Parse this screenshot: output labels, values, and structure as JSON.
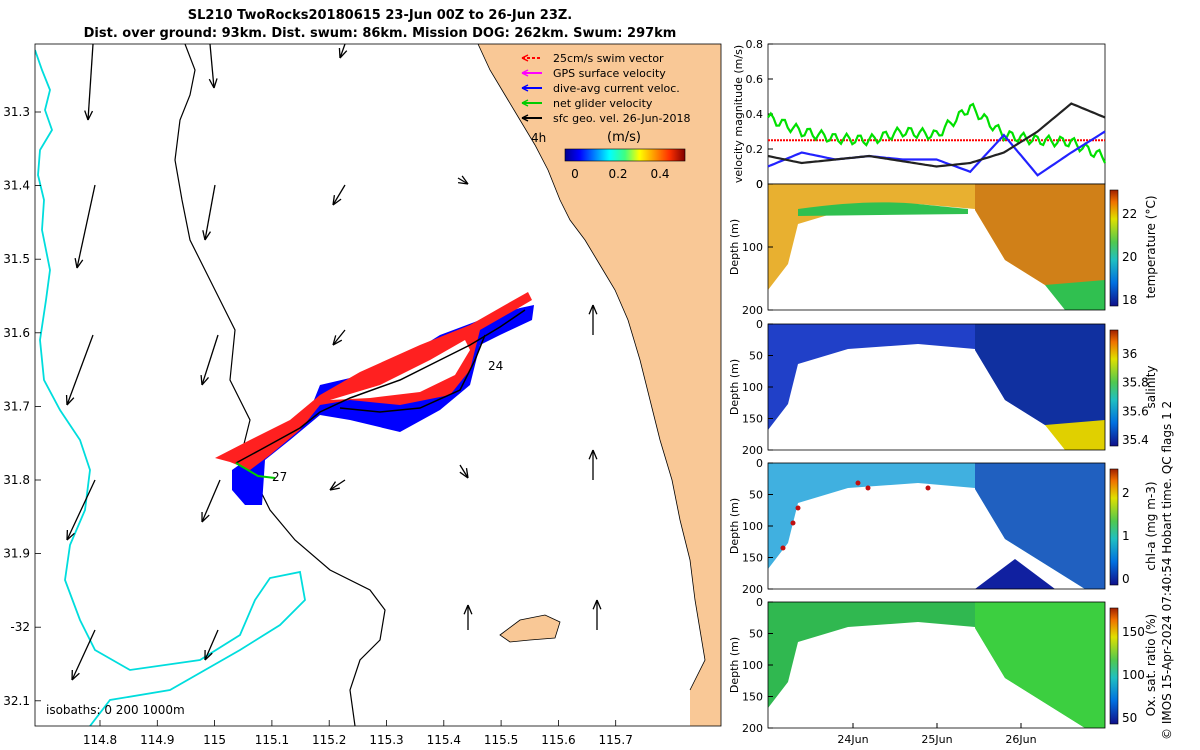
{
  "title": {
    "line1": "SL210 TwoRocks20180615 23-Jun 00Z to 26-Jun 23Z.",
    "line2": "Dist. over ground: 93km. Dist. swum: 86km. Mission DOG: 262km. Swum: 297km"
  },
  "credit": "© IMOS 15-Apr-2024 07:40:54 Hobart time. QC flags 1  2",
  "map": {
    "legend": [
      {
        "label": "25cm/s swim vector",
        "color": "#ff0000"
      },
      {
        "label": "GPS surface velocity",
        "color": "#ff00ff"
      },
      {
        "label": "dive-avg current veloc.",
        "color": "#0000ff"
      },
      {
        "label": "net glider velocity",
        "color": "#00cc00"
      },
      {
        "label": "sfc geo. vel. 26-Jun-2018",
        "color": "#000000"
      }
    ],
    "time_label": "4h",
    "colorbar_title": "(m/s)",
    "colorbar_ticks": [
      "0",
      "0.2",
      "0.4"
    ],
    "isobaths_label": "isobaths: 0   200   1000m",
    "lon_ticks": [
      "114.8",
      "114.9",
      "115",
      "115.1",
      "115.2",
      "115.3",
      "115.4",
      "115.5",
      "115.6",
      "115.7"
    ],
    "lat_ticks": [
      "31.3",
      "31.4",
      "31.5",
      "31.6",
      "31.7",
      "31.8",
      "31.9",
      "-32",
      "32.1"
    ],
    "day_labels": [
      "24",
      "27"
    ],
    "colors": {
      "land": "#f9c896",
      "contour200": "#00e5e5",
      "track_red": "#ff0000",
      "track_blue": "#0000ff"
    }
  },
  "chart_data": [
    {
      "type": "line",
      "title": "",
      "ylabel": "velocity magnitude (m/s)",
      "ylim": [
        0,
        0.8
      ],
      "yticks": [
        "0",
        "0.2",
        "0.4",
        "0.6",
        "0.8"
      ],
      "x": [
        0,
        0.1,
        0.2,
        0.3,
        0.4,
        0.5,
        0.6,
        0.7,
        0.8,
        0.9,
        1.0
      ],
      "series": [
        {
          "name": "swim",
          "color": "#ff0000",
          "values": [
            0.25,
            0.25,
            0.25,
            0.25,
            0.25,
            0.25,
            0.25,
            0.25,
            0.25,
            0.25,
            0.25
          ]
        },
        {
          "name": "net glider velocity",
          "color": "#00e000",
          "values": [
            0.38,
            0.3,
            0.26,
            0.25,
            0.3,
            0.28,
            0.44,
            0.28,
            0.25,
            0.24,
            0.15
          ]
        },
        {
          "name": "dive-avg current",
          "color": "#2222ff",
          "values": [
            0.1,
            0.18,
            0.14,
            0.16,
            0.14,
            0.14,
            0.07,
            0.28,
            0.05,
            0.18,
            0.3
          ]
        },
        {
          "name": "surface geo vel",
          "color": "#222222",
          "values": [
            0.16,
            0.12,
            0.14,
            0.16,
            0.13,
            0.1,
            0.12,
            0.18,
            0.3,
            0.46,
            0.38
          ]
        }
      ]
    },
    {
      "type": "heatmap",
      "ylabel": "Depth (m)",
      "cbar_label": "temperature (°C)",
      "yticks": [
        "0",
        "100",
        "200"
      ],
      "yticks_minor": [
        "50",
        "150"
      ],
      "cbar_ticks": [
        "22",
        "20",
        "18"
      ],
      "colors": [
        "#1010a0",
        "#0090e0",
        "#40c040",
        "#e0e000",
        "#f0a000",
        "#b03000"
      ]
    },
    {
      "type": "heatmap",
      "ylabel": "Depth (m)",
      "cbar_label": "salinity",
      "yticks": [
        "0",
        "50",
        "100",
        "150",
        "200"
      ],
      "cbar_ticks": [
        "36",
        "35.8",
        "35.6",
        "35.4"
      ],
      "colors": [
        "#101080",
        "#0060e0",
        "#20c0e0",
        "#60d060",
        "#e0e000",
        "#d04000"
      ]
    },
    {
      "type": "heatmap",
      "ylabel": "Depth (m)",
      "cbar_label": "chl-a (mg m-3)",
      "yticks": [
        "0",
        "50",
        "100",
        "150",
        "200"
      ],
      "cbar_ticks": [
        "2",
        "1",
        "0"
      ],
      "colors": [
        "#101080",
        "#0060e0",
        "#20c0e0",
        "#60d060",
        "#e0e000",
        "#c02000"
      ]
    },
    {
      "type": "heatmap",
      "ylabel": "Depth (m)",
      "cbar_label": "Ox. sat. ratio (%)",
      "yticks": [
        "0",
        "50",
        "100",
        "150",
        "200"
      ],
      "cbar_ticks": [
        "150",
        "100",
        "50"
      ],
      "xticks": [
        "24Jun",
        "25Jun",
        "26Jun"
      ],
      "colors": [
        "#101080",
        "#0060e0",
        "#20c0e0",
        "#60d060",
        "#e0e000",
        "#c02000"
      ]
    }
  ]
}
